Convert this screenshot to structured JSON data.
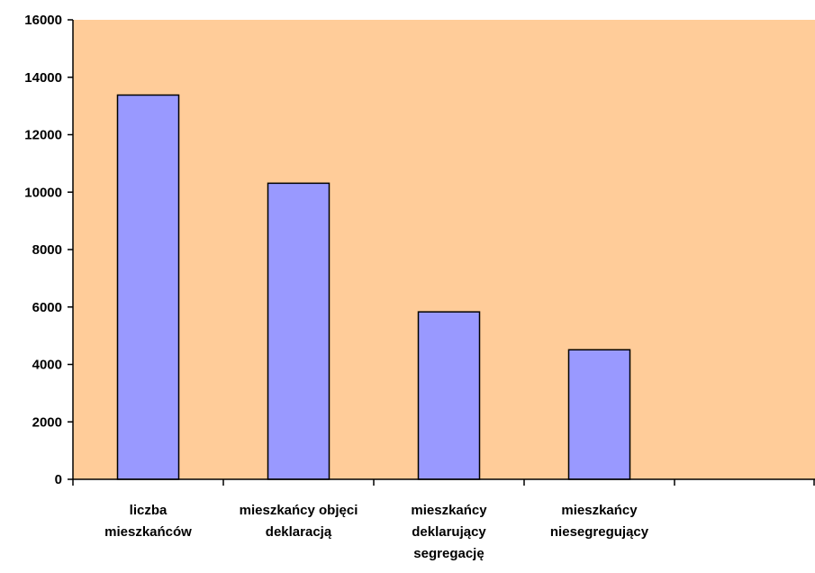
{
  "chart_data": {
    "type": "bar",
    "title": "",
    "xlabel": "",
    "ylabel": "",
    "categories": [
      [
        "liczba",
        "mieszkańców"
      ],
      [
        "mieszkańcy objęci",
        "deklaracją"
      ],
      [
        "mieszkańcy",
        "deklarujący",
        "segregację"
      ],
      [
        "mieszkańcy",
        "niesegregujący"
      ],
      [
        ""
      ]
    ],
    "values": [
      13380,
      10310,
      5830,
      4510,
      null
    ],
    "ylim": [
      0,
      16000
    ],
    "yticks": [
      0,
      2000,
      4000,
      6000,
      8000,
      10000,
      12000,
      14000,
      16000
    ],
    "grid": false,
    "legend": "none",
    "colors": {
      "plot_background": "#FFCC99",
      "bar_fill": "#9999FF",
      "bar_stroke": "#000000",
      "axis": "#000000"
    }
  }
}
